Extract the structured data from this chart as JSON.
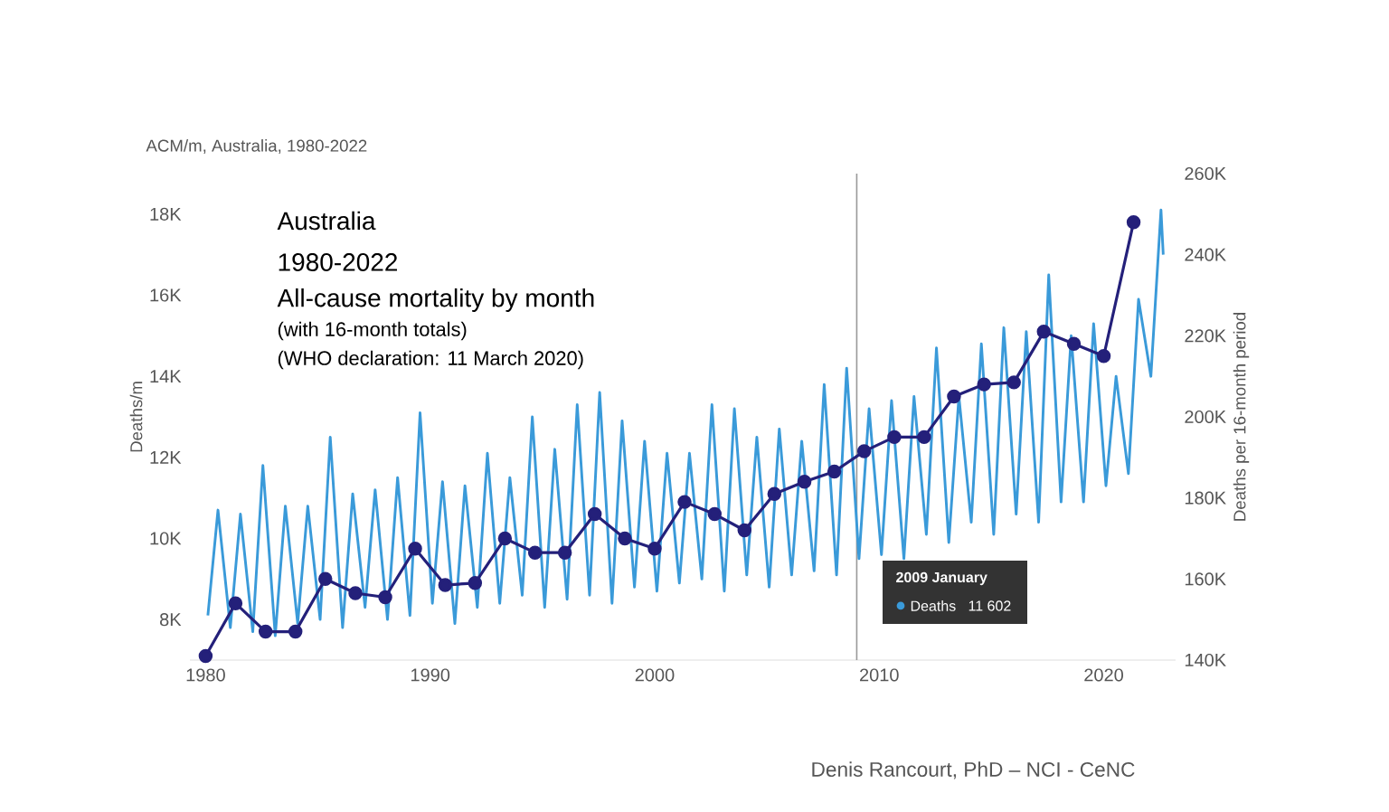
{
  "chart_data": {
    "type": "line",
    "title": "ACM/m, Australia, 1980-2022",
    "ylabel": "Deaths/m",
    "y2label": "Deaths per 16-month period",
    "xlim": [
      1979.3,
      2023.2
    ],
    "xticks": [
      1980,
      1990,
      2000,
      2010,
      2020
    ],
    "ylim": [
      7000,
      19000
    ],
    "yticks": [
      {
        "value": 8000,
        "label": "8K"
      },
      {
        "value": 10000,
        "label": "10K"
      },
      {
        "value": 12000,
        "label": "12K"
      },
      {
        "value": 14000,
        "label": "14K"
      },
      {
        "value": 16000,
        "label": "16K"
      },
      {
        "value": 18000,
        "label": "18K"
      }
    ],
    "y2lim": [
      140000,
      260000
    ],
    "y2ticks": [
      {
        "value": 140000,
        "label": "140K"
      },
      {
        "value": 160000,
        "label": "160K"
      },
      {
        "value": 180000,
        "label": "180K"
      },
      {
        "value": 200000,
        "label": "200K"
      },
      {
        "value": 220000,
        "label": "220K"
      },
      {
        "value": 240000,
        "label": "240K"
      },
      {
        "value": 260000,
        "label": "260K"
      }
    ],
    "series": [
      {
        "name": "Deaths",
        "color": "#3a9ad9",
        "marker": "none",
        "x": [
          1980.1,
          1980.55,
          1981.1,
          1981.55,
          1982.1,
          1982.55,
          1983.1,
          1983.55,
          1984.1,
          1984.55,
          1985.1,
          1985.55,
          1986.1,
          1986.55,
          1987.1,
          1987.55,
          1988.1,
          1988.55,
          1989.1,
          1989.55,
          1990.1,
          1990.55,
          1991.1,
          1991.55,
          1992.1,
          1992.55,
          1993.1,
          1993.55,
          1994.1,
          1994.55,
          1995.1,
          1995.55,
          1996.1,
          1996.55,
          1997.1,
          1997.55,
          1998.1,
          1998.55,
          1999.1,
          1999.55,
          2000.1,
          2000.55,
          2001.1,
          2001.55,
          2002.1,
          2002.55,
          2003.1,
          2003.55,
          2004.1,
          2004.55,
          2005.1,
          2005.55,
          2006.1,
          2006.55,
          2007.1,
          2007.55,
          2008.1,
          2008.55,
          2009.1,
          2009.55,
          2010.1,
          2010.55,
          2011.1,
          2011.55,
          2012.1,
          2012.55,
          2013.1,
          2013.55,
          2014.1,
          2014.55,
          2015.1,
          2015.55,
          2016.1,
          2016.55,
          2017.1,
          2017.55,
          2018.1,
          2018.55,
          2019.1,
          2019.55,
          2020.1,
          2020.55,
          2021.1,
          2021.55,
          2022.1,
          2022.55,
          2022.65
        ],
        "values": [
          8100,
          10700,
          7800,
          10600,
          7700,
          11800,
          7600,
          10800,
          7900,
          10800,
          8000,
          12500,
          7800,
          11100,
          8300,
          11200,
          8000,
          11500,
          8100,
          13100,
          8400,
          11400,
          7900,
          11300,
          8300,
          12100,
          8400,
          11500,
          8600,
          13000,
          8300,
          12200,
          8500,
          13300,
          8600,
          13600,
          8400,
          12900,
          8800,
          12400,
          8700,
          12100,
          8900,
          12100,
          9000,
          13300,
          8700,
          13200,
          9100,
          12500,
          8800,
          12700,
          9100,
          12400,
          9200,
          13800,
          9100,
          14200,
          9500,
          13200,
          9600,
          13400,
          9500,
          13500,
          10100,
          14700,
          9900,
          13500,
          10400,
          14800,
          10100,
          15200,
          10600,
          15100,
          10400,
          16500,
          10900,
          15000,
          10900,
          15300,
          11300,
          14000,
          11600,
          15900,
          14000,
          18100,
          17000
        ]
      },
      {
        "color": "#24207a",
        "marker": "circle",
        "axis": "y2",
        "x": [
          1980.0,
          1981.33,
          1982.67,
          1984.0,
          1985.33,
          1986.67,
          1988.0,
          1989.33,
          1990.67,
          1992.0,
          1993.33,
          1994.67,
          1996.0,
          1997.33,
          1998.67,
          2000.0,
          2001.33,
          2002.67,
          2004.0,
          2005.33,
          2006.67,
          2008.0,
          2009.33,
          2010.67,
          2012.0,
          2013.33,
          2014.67,
          2016.0,
          2017.33,
          2018.67,
          2020.0,
          2021.33
        ],
        "values": [
          141000,
          154000,
          147000,
          147000,
          160000,
          156500,
          155500,
          167500,
          158500,
          159000,
          170000,
          166500,
          166500,
          176000,
          170000,
          167500,
          179000,
          176000,
          172000,
          181000,
          184000,
          186500,
          191500,
          195000,
          195000,
          205000,
          208000,
          208500,
          221000,
          218000,
          215000,
          248000
        ]
      }
    ],
    "ref_lines": [
      {
        "axis": "x",
        "value": 2009,
        "color": "#999999"
      }
    ],
    "annotations": [
      "Australia",
      "1980-2022",
      "All-cause mortality by month",
      "(with 16-month totals)",
      "(WHO declaration: 11 March 2020)",
      "2009 January",
      "11 602",
      "Denis Rancourt, PhD  –  NCI - CeNC"
    ]
  }
}
